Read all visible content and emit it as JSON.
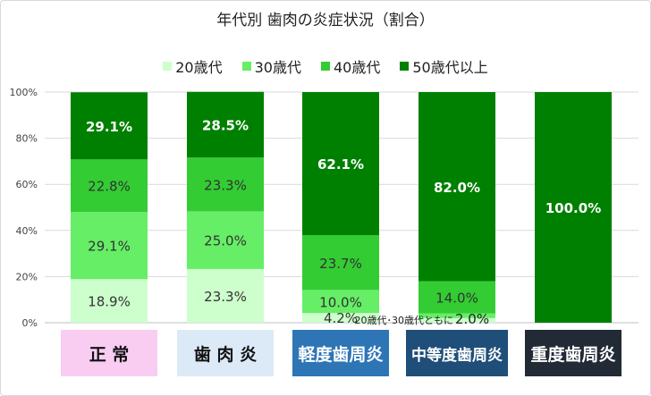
{
  "chart_data": {
    "type": "bar",
    "stacked": true,
    "title": "年代別 歯肉の炎症状況（割合）",
    "ylim": [
      0,
      100
    ],
    "yticks": [
      "0%",
      "20%",
      "40%",
      "60%",
      "80%",
      "100%"
    ],
    "grid": true,
    "legend_position": "top",
    "categories": [
      "正 常",
      "歯 肉 炎",
      "軽度歯周炎",
      "中等度歯周炎",
      "重度歯周炎"
    ],
    "category_styles": [
      {
        "bg": "#f9ccf2",
        "color": "#111111"
      },
      {
        "bg": "#dce9f7",
        "color": "#111111"
      },
      {
        "bg": "#2e75b6",
        "color": "#ffffff"
      },
      {
        "bg": "#1f4e79",
        "color": "#ffffff"
      },
      {
        "bg": "#222a35",
        "color": "#ffffff"
      }
    ],
    "series": [
      {
        "name": "20歳代",
        "color": "#ccffcc",
        "label_color": "#333333",
        "values": [
          18.9,
          23.3,
          4.2,
          2.0,
          0
        ],
        "labels": [
          "18.9%",
          "23.3%",
          "4.2%",
          "",
          ""
        ]
      },
      {
        "name": "30歳代",
        "color": "#66ee66",
        "label_color": "#333333",
        "values": [
          29.1,
          25.0,
          10.0,
          2.0,
          0
        ],
        "labels": [
          "29.1%",
          "25.0%",
          "10.0%",
          "",
          ""
        ]
      },
      {
        "name": "40歳代",
        "color": "#33cc33",
        "label_color": "#333333",
        "values": [
          22.8,
          23.3,
          23.7,
          14.0,
          0
        ],
        "labels": [
          "22.8%",
          "23.3%",
          "23.7%",
          "14.0%",
          ""
        ]
      },
      {
        "name": "50歳代以上",
        "color": "#008000",
        "label_color": "#ffffff",
        "values": [
          29.1,
          28.5,
          62.1,
          82.0,
          100.0
        ],
        "labels": [
          "29.1%",
          "28.5%",
          "62.1%",
          "82.0%",
          "100.0%"
        ]
      }
    ],
    "annotations": [
      {
        "text": "20歳代･30歳代ともに",
        "value": "2.0%",
        "category_index": 3
      }
    ]
  }
}
